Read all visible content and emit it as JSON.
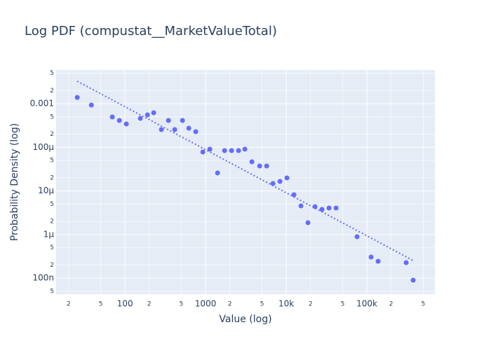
{
  "chart_data": {
    "type": "scatter",
    "title": "Log PDF (compustat__MarketValueTotal)",
    "x_label": "Value (log)",
    "y_label": "Probability Density (log)",
    "log_x": true,
    "log_y": true,
    "grid": true,
    "xlim": [
      14,
      697000
    ],
    "ylim": [
      4.3e-08,
      0.0059
    ],
    "xticks": [
      {
        "value": 20,
        "label": "2"
      },
      {
        "value": 50,
        "label": "5"
      },
      100,
      {
        "value": 200,
        "label": "2"
      },
      {
        "value": 500,
        "label": "5"
      },
      1000,
      {
        "value": 2000,
        "label": "2"
      },
      {
        "value": 5000,
        "label": "5"
      },
      {
        "value": 10000,
        "label": "10k"
      },
      {
        "value": 20000,
        "label": "2"
      },
      {
        "value": 50000,
        "label": "5"
      },
      {
        "value": 100000,
        "label": "100k"
      },
      {
        "value": 200000,
        "label": "2"
      },
      {
        "value": 500000,
        "label": "5"
      }
    ],
    "yticks": [
      {
        "value": 0.005,
        "label": "5"
      },
      {
        "value": 0.002,
        "label": "2"
      },
      0.001,
      {
        "value": 0.0005,
        "label": "5"
      },
      {
        "value": 0.0002,
        "label": "2"
      },
      {
        "value": 0.0001,
        "label": "100μ"
      },
      {
        "value": 5e-05,
        "label": "5"
      },
      {
        "value": 2e-05,
        "label": "2"
      },
      {
        "value": 1e-05,
        "label": "10μ"
      },
      {
        "value": 5e-06,
        "label": "5"
      },
      {
        "value": 2e-06,
        "label": "2"
      },
      {
        "value": 1e-06,
        "label": "1μ"
      },
      {
        "value": 5e-07,
        "label": "5"
      },
      {
        "value": 2e-07,
        "label": "2"
      },
      {
        "value": 1e-07,
        "label": "100n"
      },
      {
        "value": 5e-08,
        "label": "5"
      }
    ],
    "series": [
      {
        "color": "#636efa",
        "mode": "markers",
        "x": [
          25.6,
          38.3,
          69.7,
          85.2,
          104,
          155,
          190,
          227,
          283,
          346,
          414,
          517,
          619,
          755,
          923,
          1128,
          1406,
          1718,
          2099,
          2563,
          3069,
          3750,
          4677,
          5715,
          6837,
          8354,
          10200,
          12470,
          15230,
          18600,
          22730,
          27760,
          33920,
          41440,
          75510,
          112800,
          137800,
          306900,
          375000
        ],
        "values": [
          0.00139,
          0.00093,
          0.000495,
          0.000412,
          0.000342,
          0.00046,
          0.000554,
          0.000618,
          0.000255,
          0.000412,
          0.000255,
          0.000412,
          0.000274,
          0.000228,
          7.8e-05,
          9.06e-05,
          2.58e-05,
          8.41e-05,
          8.41e-05,
          8.41e-05,
          9.06e-05,
          4.65e-05,
          3.73e-05,
          3.73e-05,
          1.48e-05,
          1.65e-05,
          1.99e-05,
          8.19e-06,
          4.54e-06,
          1.87e-06,
          4.37e-06,
          3.77e-06,
          4.06e-06,
          4.06e-06,
          8.9e-07,
          3.05e-07,
          2.44e-07,
          2.27e-07,
          9e-08
        ]
      },
      {
        "color": "#636efa",
        "mode": "dotted-line",
        "x": [
          25.6,
          375000
        ],
        "values": [
          0.00327,
          2.54e-07
        ]
      }
    ]
  }
}
